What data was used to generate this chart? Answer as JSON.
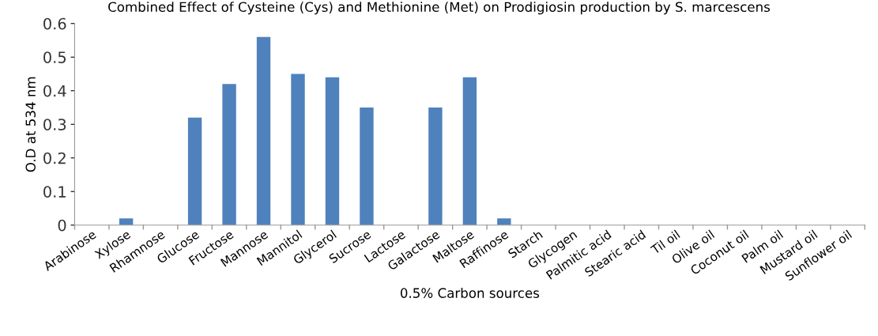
{
  "chart_data": {
    "type": "bar",
    "title": "Combined Effect of Cysteine (Cys) and Methionine (Met) on Prodigiosin production by S. marcescens",
    "xlabel": "0.5% Carbon sources",
    "ylabel": "O.D at 534 nm",
    "categories": [
      "Arabinose",
      "Xylose",
      "Rhamnose",
      "Glucose",
      "Fructose",
      "Mannose",
      "Mannitol",
      "Glycerol",
      "Sucrose",
      "Lactose",
      "Galactose",
      "Maltose",
      "Raffinose",
      "Starch",
      "Glycogen",
      "Palmitic acid",
      "Stearic acid",
      "Til oil",
      "Olive oil",
      "Coconut oil",
      "Palm oil",
      "Mustard oil",
      "Sunflower oil"
    ],
    "values": [
      0,
      0.02,
      0,
      0.32,
      0.42,
      0.56,
      0.45,
      0.44,
      0.35,
      0,
      0.35,
      0.44,
      0.02,
      0,
      0,
      0,
      0,
      0,
      0,
      0,
      0,
      0,
      0
    ],
    "color": "#4f81bd",
    "ylim": [
      0,
      0.6
    ],
    "yticks": [
      0,
      0.1,
      0.2,
      0.3,
      0.4,
      0.5,
      0.6
    ],
    "grid": false,
    "legend": false
  }
}
